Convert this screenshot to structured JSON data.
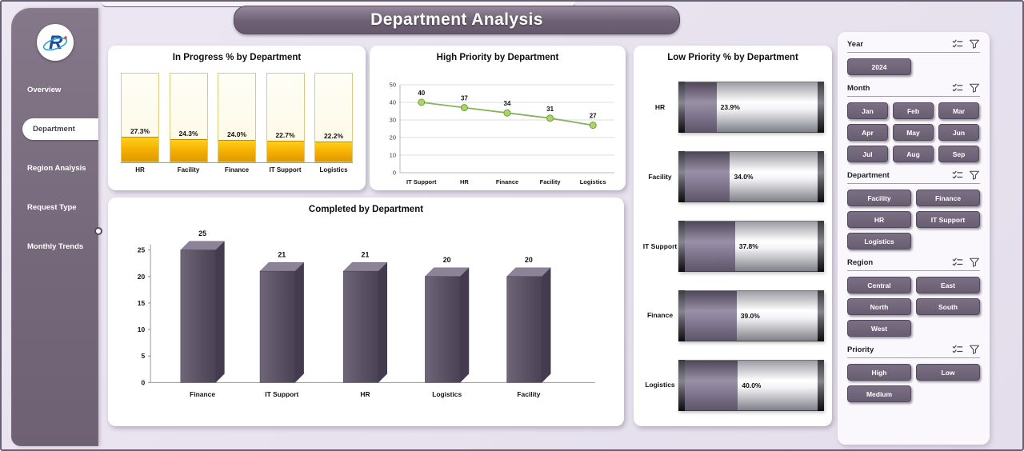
{
  "title": "Department Analysis",
  "sidebar": {
    "logo": "R",
    "items": [
      {
        "label": "Overview",
        "active": false
      },
      {
        "label": "Department",
        "active": true
      },
      {
        "label": "Region Analysis",
        "active": false
      },
      {
        "label": "Request Type",
        "active": false
      },
      {
        "label": "Monthly Trends",
        "active": false
      }
    ]
  },
  "chart_data": [
    {
      "type": "bar",
      "title": "In Progress % by Department",
      "categories": [
        "HR",
        "Facility",
        "Finance",
        "IT Support",
        "Logistics"
      ],
      "values": [
        27.3,
        24.3,
        24.0,
        22.7,
        22.2
      ],
      "labels": [
        "27.3%",
        "24.3%",
        "24.0%",
        "22.7%",
        "22.2%"
      ],
      "ylim": [
        0,
        100
      ]
    },
    {
      "type": "line",
      "title": "High Priority by Department",
      "categories": [
        "IT Support",
        "HR",
        "Finance",
        "Facility",
        "Logistics"
      ],
      "values": [
        40,
        37,
        34,
        31,
        27
      ],
      "ylim": [
        0,
        50
      ],
      "yticks": [
        0,
        10,
        20,
        30,
        40,
        50
      ]
    },
    {
      "type": "bar",
      "orientation": "horizontal",
      "title": "Low Priority % by Department",
      "categories": [
        "HR",
        "Facility",
        "IT Support",
        "Finance",
        "Logistics"
      ],
      "values": [
        23.9,
        34.0,
        37.8,
        39.0,
        40.0
      ],
      "labels": [
        "23.9%",
        "34.0%",
        "37.8%",
        "39.0%",
        "40.0%"
      ],
      "xlim": [
        0,
        100
      ]
    },
    {
      "type": "bar",
      "style": "3d",
      "title": "Completed by Department",
      "categories": [
        "Finance",
        "IT Support",
        "HR",
        "Logistics",
        "Facility"
      ],
      "values": [
        25,
        21,
        21,
        20,
        20
      ],
      "labels": [
        "25",
        "21",
        "21",
        "20",
        "20"
      ],
      "ylim": [
        0,
        25
      ],
      "yticks": [
        0,
        5,
        10,
        15,
        20,
        25
      ]
    }
  ],
  "slicers": [
    {
      "label": "Year",
      "cols": 2,
      "options": [
        "2024"
      ]
    },
    {
      "label": "Month",
      "cols": 3,
      "options": [
        "Jan",
        "Feb",
        "Mar",
        "Apr",
        "May",
        "Jun",
        "Jul",
        "Aug",
        "Sep"
      ]
    },
    {
      "label": "Department",
      "cols": 2,
      "options": [
        "Facility",
        "Finance",
        "HR",
        "IT Support",
        "Logistics"
      ]
    },
    {
      "label": "Region",
      "cols": 2,
      "options": [
        "Central",
        "East",
        "North",
        "South",
        "West"
      ]
    },
    {
      "label": "Priority",
      "cols": 2,
      "options": [
        "High",
        "Low",
        "Medium"
      ]
    }
  ],
  "colors": {
    "sidebar": "#746879",
    "background": "#e8e2ee",
    "banner": "#6d6073",
    "slicer_button": "#6e6375",
    "gold_fill": "#f2ad00",
    "line_green": "#84b556",
    "bar_purple": "#5c5264",
    "gauge_fill": "#786d84"
  }
}
